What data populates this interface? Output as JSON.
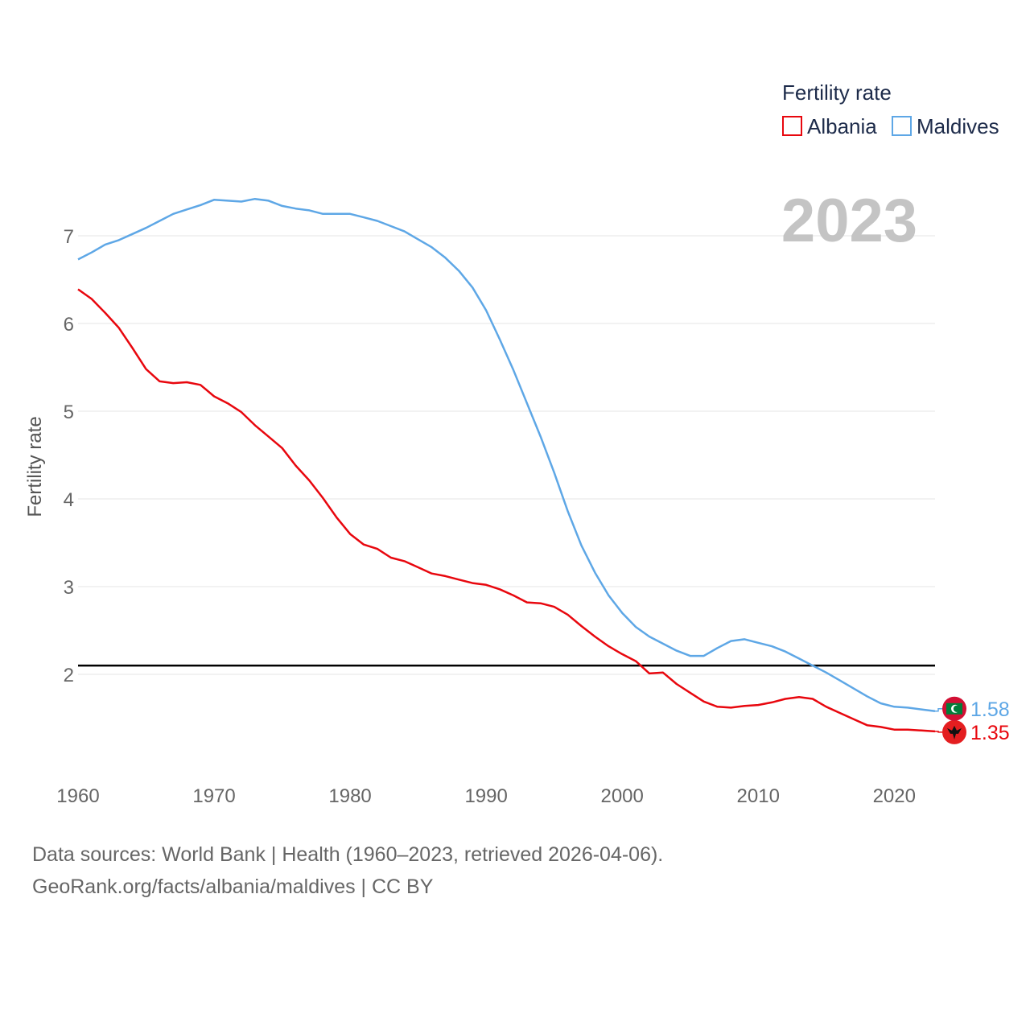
{
  "legend": {
    "title": "Fertility rate"
  },
  "year_label": "2023",
  "footer": {
    "line1": "Data sources: World Bank | Health (1960–2023, retrieved 2026-04-06).",
    "line2": "GeoRank.org/facts/albania/maldives | CC BY"
  },
  "chart_data": {
    "type": "line",
    "title": "Fertility rate",
    "xlabel": "",
    "ylabel": "Fertility rate",
    "xlim": [
      1960,
      2023
    ],
    "ylim": [
      1.0,
      7.6
    ],
    "x_ticks": [
      1960,
      1970,
      1980,
      1990,
      2000,
      2010,
      2020
    ],
    "y_ticks": [
      2,
      3,
      4,
      5,
      6,
      7
    ],
    "grid": true,
    "legend_position": "top-right",
    "reference_line": {
      "y": 2.1,
      "color": "#000000"
    },
    "x": [
      1960,
      1961,
      1962,
      1963,
      1964,
      1965,
      1966,
      1967,
      1968,
      1969,
      1970,
      1971,
      1972,
      1973,
      1974,
      1975,
      1976,
      1977,
      1978,
      1979,
      1980,
      1981,
      1982,
      1983,
      1984,
      1985,
      1986,
      1987,
      1988,
      1989,
      1990,
      1991,
      1992,
      1993,
      1994,
      1995,
      1996,
      1997,
      1998,
      1999,
      2000,
      2001,
      2002,
      2003,
      2004,
      2005,
      2006,
      2007,
      2008,
      2009,
      2010,
      2011,
      2012,
      2013,
      2014,
      2015,
      2016,
      2017,
      2018,
      2019,
      2020,
      2021,
      2022,
      2023
    ],
    "series": [
      {
        "name": "Albania",
        "color": "#e8070e",
        "end_value": "1.35",
        "flag": "albania-flag",
        "values": [
          6.39,
          6.28,
          6.12,
          5.95,
          5.72,
          5.48,
          5.34,
          5.32,
          5.33,
          5.3,
          5.17,
          5.09,
          4.99,
          4.84,
          4.71,
          4.58,
          4.38,
          4.21,
          4.01,
          3.79,
          3.6,
          3.48,
          3.43,
          3.33,
          3.29,
          3.22,
          3.15,
          3.12,
          3.08,
          3.04,
          3.02,
          2.97,
          2.9,
          2.82,
          2.81,
          2.77,
          2.68,
          2.55,
          2.43,
          2.32,
          2.23,
          2.15,
          2.01,
          2.02,
          1.89,
          1.79,
          1.69,
          1.63,
          1.62,
          1.64,
          1.65,
          1.68,
          1.72,
          1.74,
          1.72,
          1.63,
          1.56,
          1.49,
          1.42,
          1.4,
          1.37,
          1.37,
          1.36,
          1.35
        ]
      },
      {
        "name": "Maldives",
        "color": "#5ea7e6",
        "end_value": "1.58",
        "flag": "maldives-flag",
        "values": [
          6.73,
          6.81,
          6.9,
          6.95,
          7.02,
          7.09,
          7.17,
          7.25,
          7.3,
          7.35,
          7.41,
          7.4,
          7.39,
          7.42,
          7.4,
          7.34,
          7.31,
          7.29,
          7.25,
          7.25,
          7.25,
          7.21,
          7.17,
          7.11,
          7.05,
          6.96,
          6.87,
          6.75,
          6.6,
          6.41,
          6.15,
          5.82,
          5.47,
          5.09,
          4.71,
          4.3,
          3.86,
          3.47,
          3.16,
          2.9,
          2.7,
          2.54,
          2.43,
          2.35,
          2.27,
          2.21,
          2.21,
          2.3,
          2.38,
          2.4,
          2.36,
          2.32,
          2.26,
          2.18,
          2.1,
          2.02,
          1.93,
          1.84,
          1.75,
          1.67,
          1.63,
          1.62,
          1.6,
          1.58
        ]
      }
    ]
  }
}
